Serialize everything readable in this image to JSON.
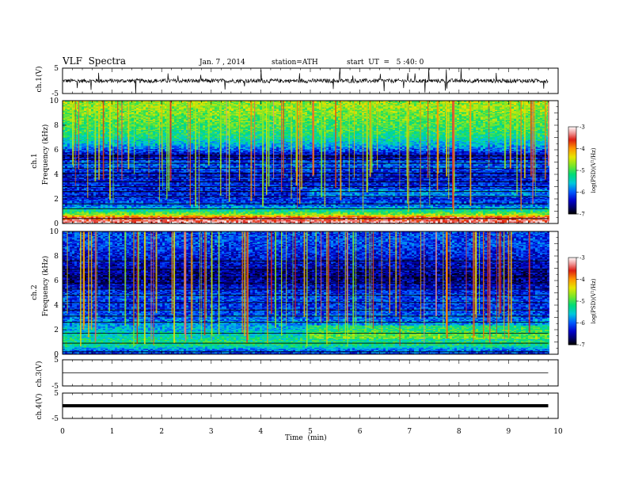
{
  "header": {
    "title": "VLF  Spectra",
    "date": "Jan. 7 , 2014",
    "station": "station=ATH",
    "start": "start  UT  =   5 :40: 0"
  },
  "chart_data": [
    {
      "type": "line",
      "ylabel": "ch.1(V)",
      "ylim": [
        -5,
        5
      ],
      "y_ticks": [
        "5",
        "-5"
      ],
      "x_range_min": [
        0,
        10
      ],
      "data_extent_min": [
        0,
        9.8
      ],
      "color": "#000000"
    },
    {
      "type": "heatmap",
      "ylabel_line1": "ch.1",
      "ylabel_line2": "Frequency  (kHz)",
      "ylim": [
        0,
        10
      ],
      "y_ticks": [
        "0",
        "2",
        "4",
        "6",
        "8",
        "10"
      ],
      "colorbar_label": "log(PSD)(V²/Hz)",
      "colorbar_ticks": [
        "-3",
        "-4",
        "-5",
        "-6",
        "-7"
      ],
      "colorbar_range": [
        -7,
        -3
      ],
      "band_profile": [
        [
          0.0,
          -3.2
        ],
        [
          0.3,
          -3.5
        ],
        [
          0.5,
          -3.6
        ],
        [
          0.7,
          -4.6
        ],
        [
          1.0,
          -5.2
        ],
        [
          1.5,
          -6.0
        ],
        [
          2.0,
          -6.2
        ],
        [
          2.5,
          -6.3
        ],
        [
          3.0,
          -6.2
        ],
        [
          3.5,
          -6.3
        ],
        [
          4.0,
          -6.3
        ],
        [
          4.5,
          -6.1
        ],
        [
          5.0,
          -6.0
        ],
        [
          5.5,
          -6.6
        ],
        [
          6.0,
          -6.0
        ],
        [
          6.5,
          -5.6
        ],
        [
          7.0,
          -5.3
        ],
        [
          7.5,
          -5.1
        ],
        [
          8.0,
          -5.0
        ],
        [
          8.5,
          -4.9
        ],
        [
          9.0,
          -4.8
        ],
        [
          9.5,
          -4.7
        ],
        [
          10.0,
          -4.7
        ]
      ]
    },
    {
      "type": "heatmap",
      "ylabel_line1": "ch.2",
      "ylabel_line2": "Frequency  (kHz)",
      "ylim": [
        0,
        10
      ],
      "y_ticks": [
        "0",
        "2",
        "4",
        "6",
        "8",
        "10"
      ],
      "colorbar_label": "log(PSD)(V²/Hz)",
      "colorbar_ticks": [
        "-3",
        "-4",
        "-5",
        "-6",
        "-7"
      ],
      "colorbar_range": [
        -7,
        -3
      ],
      "band_profile": [
        [
          0.0,
          -6.2
        ],
        [
          0.3,
          -6.0
        ],
        [
          0.7,
          -5.3
        ],
        [
          1.0,
          -5.2
        ],
        [
          1.5,
          -5.4
        ],
        [
          2.0,
          -5.6
        ],
        [
          2.5,
          -5.8
        ],
        [
          3.0,
          -6.0
        ],
        [
          3.5,
          -6.1
        ],
        [
          4.0,
          -6.2
        ],
        [
          4.5,
          -6.1
        ],
        [
          5.0,
          -6.2
        ],
        [
          5.5,
          -6.4
        ],
        [
          6.0,
          -6.6
        ],
        [
          6.5,
          -6.6
        ],
        [
          7.0,
          -6.5
        ],
        [
          7.5,
          -6.4
        ],
        [
          8.0,
          -6.3
        ],
        [
          8.5,
          -6.2
        ],
        [
          9.0,
          -6.1
        ],
        [
          9.5,
          -6.1
        ],
        [
          10.0,
          -6.1
        ]
      ]
    },
    {
      "type": "line",
      "ylabel": "ch.3(V)",
      "ylim": [
        -5,
        5
      ],
      "y_ticks": [
        "5",
        "-5"
      ],
      "level": 0,
      "color": "#000000"
    },
    {
      "type": "line",
      "ylabel": "ch.4(V)",
      "ylim": [
        -5,
        5
      ],
      "y_ticks": [
        "5",
        "-5"
      ],
      "level": 0,
      "color": "#000000"
    }
  ],
  "x_axis": {
    "label": "Time  (min)",
    "range": [
      0,
      10
    ],
    "ticks": [
      "0",
      "1",
      "2",
      "3",
      "4",
      "5",
      "6",
      "7",
      "8",
      "9",
      "10"
    ]
  }
}
